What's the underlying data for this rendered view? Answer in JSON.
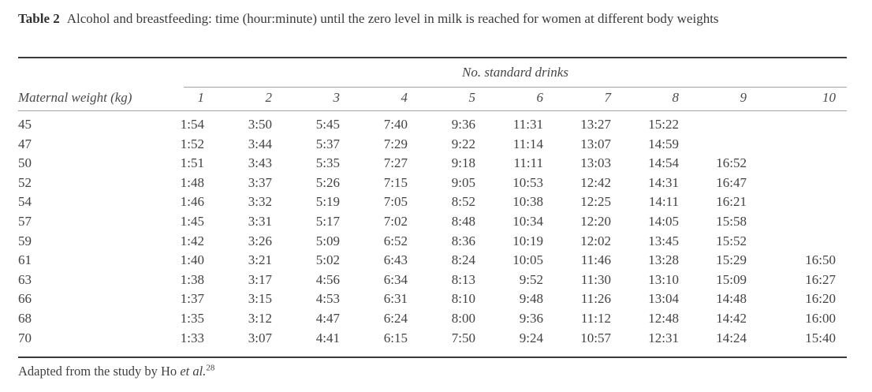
{
  "title": {
    "label": "Table 2",
    "caption": "Alcohol and breastfeeding: time (hour:minute) until the zero level in milk is reached for women at different body weights"
  },
  "table": {
    "spanner": "No. standard drinks",
    "row_header": "Maternal weight (kg)",
    "columns": [
      "1",
      "2",
      "3",
      "4",
      "5",
      "6",
      "7",
      "8",
      "9",
      "10"
    ],
    "rows": [
      {
        "weight": "45",
        "values": [
          "1:54",
          "3:50",
          "5:45",
          "7:40",
          "9:36",
          "11:31",
          "13:27",
          "15:22",
          "",
          ""
        ]
      },
      {
        "weight": "47",
        "values": [
          "1:52",
          "3:44",
          "5:37",
          "7:29",
          "9:22",
          "11:14",
          "13:07",
          "14:59",
          "",
          ""
        ]
      },
      {
        "weight": "50",
        "values": [
          "1:51",
          "3:43",
          "5:35",
          "7:27",
          "9:18",
          "11:11",
          "13:03",
          "14:54",
          "16:52",
          ""
        ]
      },
      {
        "weight": "52",
        "values": [
          "1:48",
          "3:37",
          "5:26",
          "7:15",
          "9:05",
          "10:53",
          "12:42",
          "14:31",
          "16:47",
          ""
        ]
      },
      {
        "weight": "54",
        "values": [
          "1:46",
          "3:32",
          "5:19",
          "7:05",
          "8:52",
          "10:38",
          "12:25",
          "14:11",
          "16:21",
          ""
        ]
      },
      {
        "weight": "57",
        "values": [
          "1:45",
          "3:31",
          "5:17",
          "7:02",
          "8:48",
          "10:34",
          "12:20",
          "14:05",
          "15:58",
          ""
        ]
      },
      {
        "weight": "59",
        "values": [
          "1:42",
          "3:26",
          "5:09",
          "6:52",
          "8:36",
          "10:19",
          "12:02",
          "13:45",
          "15:52",
          ""
        ]
      },
      {
        "weight": "61",
        "values": [
          "1:40",
          "3:21",
          "5:02",
          "6:43",
          "8:24",
          "10:05",
          "11:46",
          "13:28",
          "15:29",
          "16:50"
        ]
      },
      {
        "weight": "63",
        "values": [
          "1:38",
          "3:17",
          "4:56",
          "6:34",
          "8:13",
          "9:52",
          "11:30",
          "13:10",
          "15:09",
          "16:27"
        ]
      },
      {
        "weight": "66",
        "values": [
          "1:37",
          "3:15",
          "4:53",
          "6:31",
          "8:10",
          "9:48",
          "11:26",
          "13:04",
          "14:48",
          "16:20"
        ]
      },
      {
        "weight": "68",
        "values": [
          "1:35",
          "3:12",
          "4:47",
          "6:24",
          "8:00",
          "9:36",
          "11:12",
          "12:48",
          "14:42",
          "16:00"
        ]
      },
      {
        "weight": "70",
        "values": [
          "1:33",
          "3:07",
          "4:41",
          "6:15",
          "7:50",
          "9:24",
          "10:57",
          "12:31",
          "14:24",
          "15:40"
        ]
      }
    ]
  },
  "footnote": {
    "prefix": "Adapted from the study by Ho ",
    "etal": "et al.",
    "ref": "28"
  }
}
